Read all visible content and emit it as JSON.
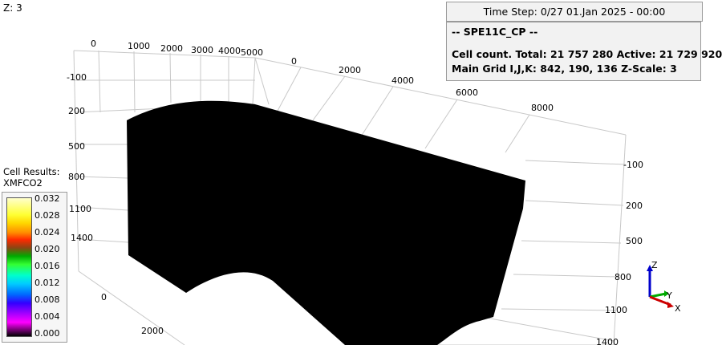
{
  "viewer": {
    "z_label": "Z: 3",
    "time_step": "Time Step: 0/27 01.Jan 2025 - 00:00",
    "info": {
      "case_name": "-- SPE11C_CP --",
      "cell_count": "Cell count. Total: 21 757 280 Active: 21 729 920",
      "grid": "Main Grid I,J,K: 842, 190, 136 Z-Scale: 3"
    }
  },
  "legend": {
    "title_line1": "Cell Results:",
    "title_line2": "XMFCO2",
    "values": [
      "0.032",
      "0.028",
      "0.024",
      "0.020",
      "0.016",
      "0.012",
      "0.008",
      "0.004",
      "0.000"
    ]
  },
  "axes": {
    "top_left_x_ticks": [
      "0",
      "1000",
      "2000",
      "3000",
      "4000",
      "5000"
    ],
    "top_right_x_ticks": [
      "0",
      "2000",
      "4000",
      "6000",
      "8000"
    ],
    "left_z_ticks": [
      "-100",
      "200",
      "500",
      "800",
      "1100",
      "1400"
    ],
    "right_z_ticks": [
      "-100",
      "200",
      "500",
      "800",
      "1100",
      "1400"
    ],
    "bottom_y_ticks": [
      "0",
      "2000"
    ]
  },
  "triad": {
    "z": "Z",
    "y": "Y",
    "x": "X"
  },
  "colors": {
    "axis_x": "#cc0000",
    "axis_y": "#00aa00",
    "axis_z": "#0000cc",
    "model": "#000000"
  }
}
